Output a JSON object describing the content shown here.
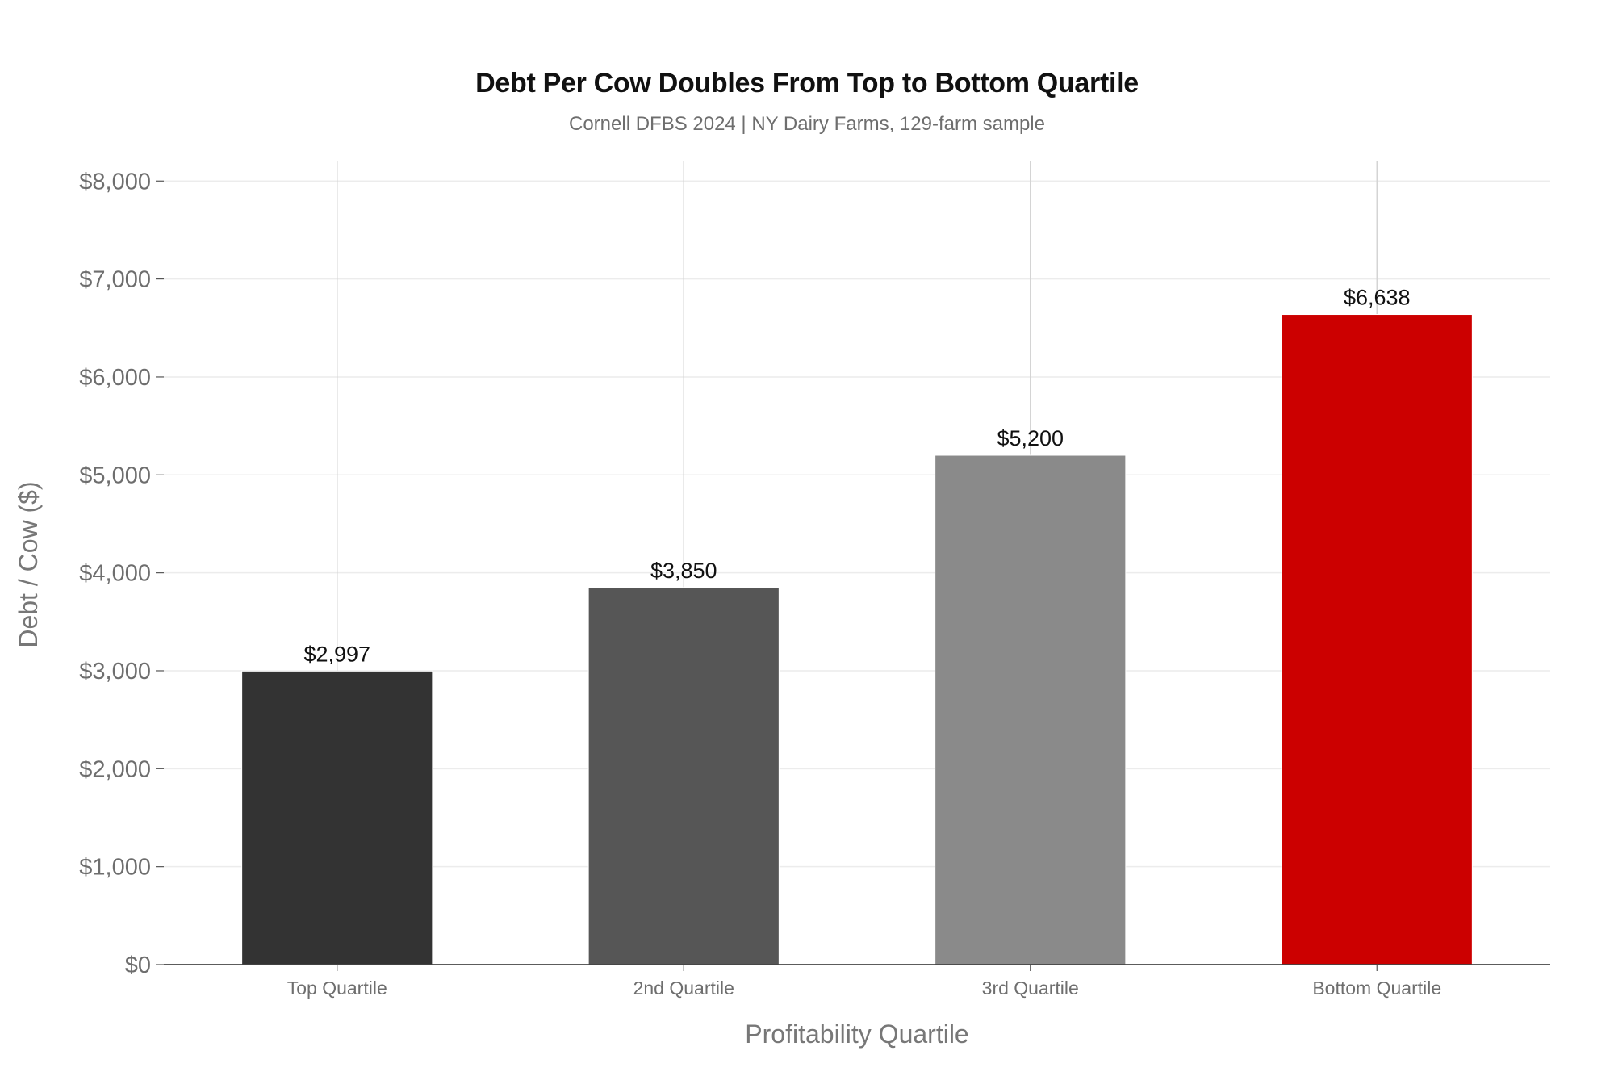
{
  "chart_data": {
    "type": "bar",
    "title": "Debt Per Cow Doubles From Top to Bottom Quartile",
    "subtitle": "Cornell DFBS 2024 | NY Dairy Farms, 129-farm sample",
    "xlabel": "Profitability Quartile",
    "ylabel": "Debt / Cow ($)",
    "categories": [
      "Top Quartile",
      "2nd Quartile",
      "3rd Quartile",
      "Bottom Quartile"
    ],
    "values": [
      2997,
      3850,
      5200,
      6638
    ],
    "value_labels": [
      "$2,997",
      "$3,850",
      "$5,200",
      "$6,638"
    ],
    "colors": [
      "#333333",
      "#565656",
      "#8a8a8a",
      "#cc0000"
    ],
    "ylim": [
      0,
      8200
    ],
    "yticks": [
      0,
      1000,
      2000,
      3000,
      4000,
      5000,
      6000,
      7000,
      8000
    ],
    "ytick_labels": [
      "$0",
      "$1,000",
      "$2,000",
      "$3,000",
      "$4,000",
      "$5,000",
      "$6,000",
      "$7,000",
      "$8,000"
    ],
    "grid": true,
    "legend": "none"
  }
}
